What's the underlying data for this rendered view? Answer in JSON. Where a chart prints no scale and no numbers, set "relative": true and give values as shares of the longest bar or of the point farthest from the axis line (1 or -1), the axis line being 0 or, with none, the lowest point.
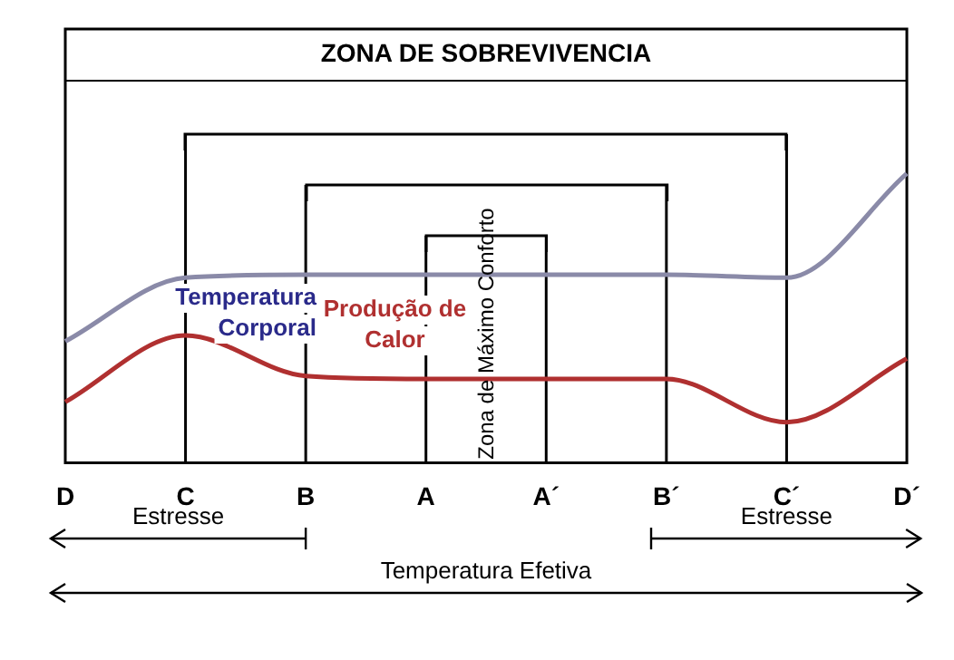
{
  "chart_data": {
    "type": "line",
    "relative": true,
    "xlabel": "Temperatura Efetiva",
    "categories": [
      "D",
      "C",
      "B",
      "A",
      "A´",
      "B´",
      "C´",
      "D´"
    ],
    "series": [
      {
        "name": "Temperatura Corporal",
        "color": "#8a8aa8",
        "values": [
          0.42,
          0.64,
          0.65,
          0.65,
          0.65,
          0.65,
          0.64,
          1
        ]
      },
      {
        "name": "Produção de Calor",
        "color": "#b03030",
        "values": [
          0.21,
          0.44,
          0.3,
          0.29,
          0.29,
          0.29,
          0.14,
          0.36
        ]
      }
    ],
    "ref_lines": [
      {
        "axis": "x",
        "value": "C"
      },
      {
        "axis": "x",
        "value": "B"
      },
      {
        "axis": "x",
        "value": "A"
      },
      {
        "axis": "x",
        "value": "A´"
      },
      {
        "axis": "x",
        "value": "B´"
      },
      {
        "axis": "x",
        "value": "C´"
      }
    ],
    "annotations": [
      "ZONA DE SOBREVIVENCIA",
      "Zona de Máximo Conforto",
      "Estresse",
      "Estresse"
    ]
  }
}
